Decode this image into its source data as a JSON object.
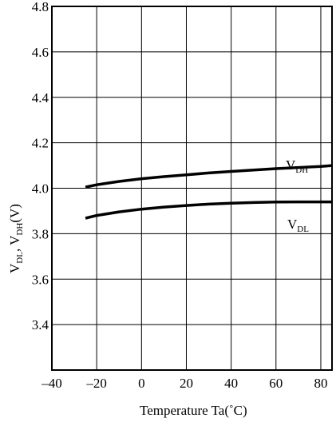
{
  "chart_data": {
    "type": "line",
    "title": "",
    "xlabel": {
      "main": "Temperature   Ta(",
      "unit": "˚C",
      "close": ")"
    },
    "ylabel": {
      "p1": "V",
      "s1": "DL",
      "p2": ", V",
      "s2": "DH",
      "p3": "(V)"
    },
    "xlim": [
      -40,
      85
    ],
    "ylim": [
      3.2,
      4.8
    ],
    "grid": true,
    "x_ticks": [
      -40,
      -20,
      0,
      20,
      40,
      60,
      80
    ],
    "x_tick_labels": [
      "–40",
      "–20",
      "0",
      "20",
      "40",
      "60",
      "80"
    ],
    "y_ticks": [
      3.4,
      3.6,
      3.8,
      4.0,
      4.2,
      4.4,
      4.6,
      4.8
    ],
    "y_tick_labels": [
      "3.4",
      "3.6",
      "3.8",
      "4.0",
      "4.2",
      "4.4",
      "4.6",
      "4.8"
    ],
    "series": [
      {
        "key": "vdh",
        "label_main": "V",
        "label_sub": "DH",
        "x": [
          -25,
          -20,
          -10,
          0,
          10,
          20,
          30,
          40,
          50,
          60,
          70,
          80,
          85
        ],
        "y": [
          4.005,
          4.015,
          4.03,
          4.042,
          4.051,
          4.059,
          4.067,
          4.074,
          4.08,
          4.086,
          4.091,
          4.096,
          4.1
        ]
      },
      {
        "key": "vdl",
        "label_main": "V",
        "label_sub": "DL",
        "x": [
          -25,
          -20,
          -10,
          0,
          10,
          20,
          30,
          40,
          50,
          60,
          70,
          80,
          85
        ],
        "y": [
          3.868,
          3.88,
          3.896,
          3.908,
          3.917,
          3.924,
          3.93,
          3.934,
          3.937,
          3.939,
          3.94,
          3.94,
          3.94
        ]
      }
    ],
    "line_color": "#000000"
  }
}
